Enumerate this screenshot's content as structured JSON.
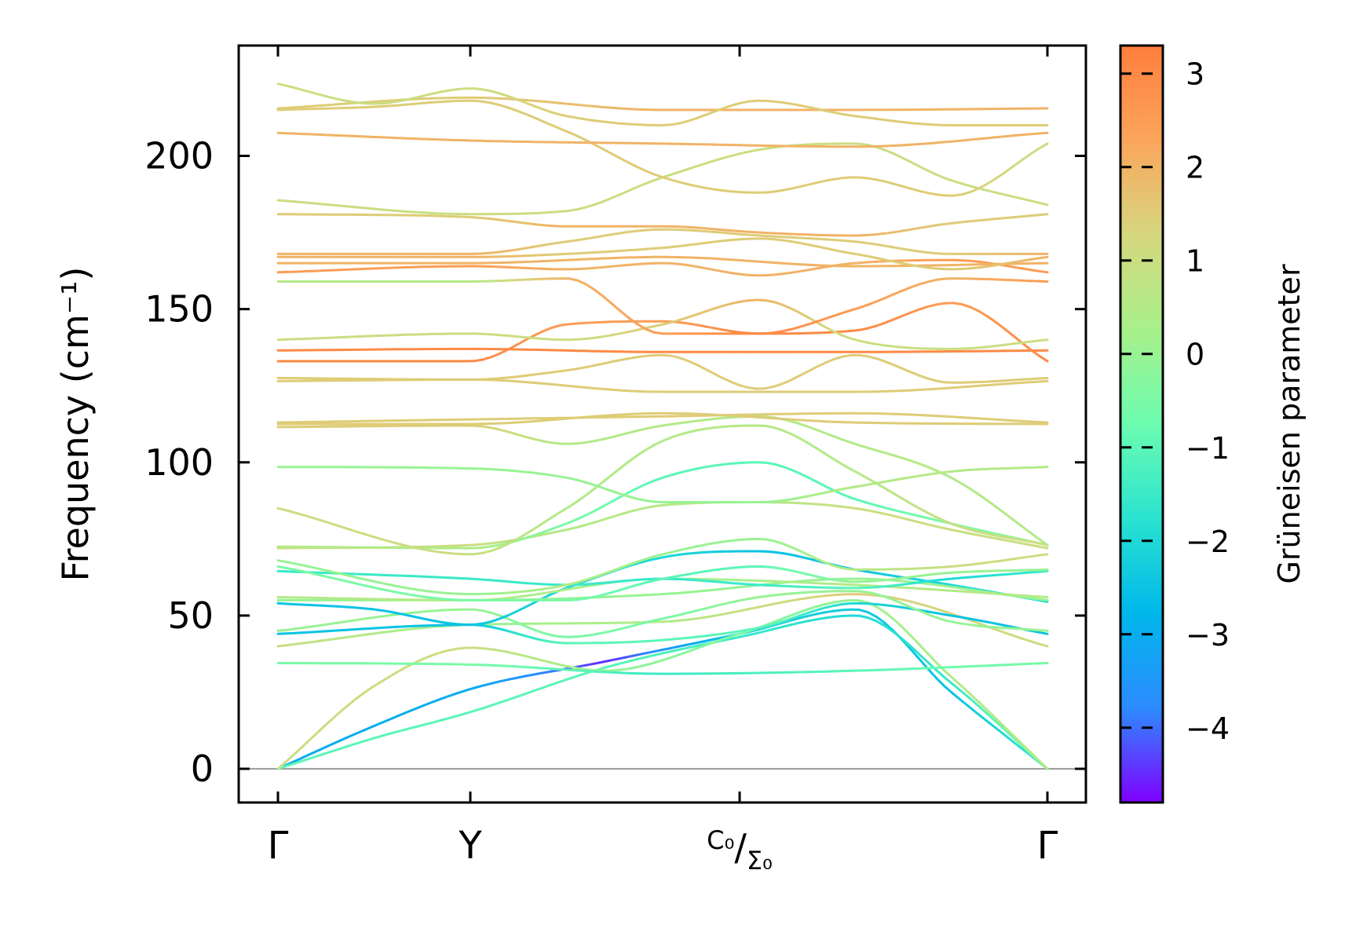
{
  "chart_data": {
    "type": "line",
    "title": "",
    "xlabel": "",
    "ylabel": "Frequency (cm⁻¹)",
    "ylim": [
      -11,
      236
    ],
    "ytick_values": [
      0,
      50,
      100,
      150,
      200
    ],
    "ytick_labels": [
      "0",
      "50",
      "100",
      "150",
      "200"
    ],
    "x_path_length": 4.0,
    "high_symmetry_points": [
      {
        "label": "Γ",
        "x": 0.0
      },
      {
        "label": "Y",
        "x": 1.0
      },
      {
        "label": "C₀/Σ₀",
        "x": 2.4
      },
      {
        "label": "Γ",
        "x": 4.0
      }
    ],
    "zero_line": 0,
    "colorbar": {
      "label": "Grüneisen parameter",
      "range": [
        -4.8,
        3.3
      ],
      "tick_values": [
        3,
        2,
        1,
        0,
        -1,
        -2,
        -3,
        -4
      ],
      "tick_labels": [
        "3",
        "2",
        "1",
        "0",
        "−1",
        "−2",
        "−3",
        "−4"
      ],
      "colormap": "rainbow",
      "stops": [
        "#7f00ff",
        "#2d8bff",
        "#00b7eb",
        "#2ae3d0",
        "#6cfcb0",
        "#a8f08a",
        "#d6d77f",
        "#fba55c",
        "#ff7e3d"
      ]
    },
    "series": [
      {
        "name": "acoustic-1",
        "x": [
          0,
          0.5,
          1.0,
          1.7,
          2.4,
          3.0,
          3.5,
          4.0
        ],
        "y": [
          0,
          14,
          26,
          35,
          44,
          52,
          25,
          0
        ],
        "g": [
          -3,
          -3,
          -3,
          -4.5,
          -2.3,
          -2.3,
          -2.5,
          -1.5
        ]
      },
      {
        "name": "acoustic-2",
        "x": [
          0,
          0.5,
          1.0,
          1.7,
          2.4,
          3.0,
          3.5,
          4.0
        ],
        "y": [
          0,
          10,
          18.5,
          33,
          43,
          50,
          28,
          0
        ],
        "g": [
          -1,
          -1,
          -1,
          -1,
          -1.5,
          -2,
          -1.5,
          -0.5
        ]
      },
      {
        "name": "acoustic-3",
        "x": [
          0,
          0.5,
          1.0,
          1.7,
          2.4,
          3.0,
          3.5,
          4.0
        ],
        "y": [
          0,
          27,
          39.5,
          32,
          44,
          55,
          30,
          0
        ],
        "g": [
          1,
          1,
          1,
          0,
          -0.5,
          0,
          0.5,
          0.5
        ]
      },
      {
        "name": "opt-34",
        "x": [
          0,
          1,
          2,
          3,
          4
        ],
        "y": [
          34.5,
          34,
          31,
          32,
          34.5
        ],
        "g": [
          -0.5,
          -0.5,
          -1.5,
          -1,
          -0.5
        ]
      },
      {
        "name": "opt-40",
        "x": [
          0,
          1,
          2,
          3,
          4
        ],
        "y": [
          40,
          47,
          48,
          57,
          40
        ],
        "g": [
          1,
          0,
          0.5,
          1.5,
          1
        ]
      },
      {
        "name": "opt-44",
        "x": [
          0,
          1,
          1.5,
          2,
          2.5,
          3,
          3.5,
          4
        ],
        "y": [
          44,
          47,
          41,
          42,
          46,
          54,
          50,
          44
        ],
        "g": [
          -2.5,
          -2.5,
          -1,
          -1,
          -1,
          -2,
          -2.5,
          -2.5
        ]
      },
      {
        "name": "opt-45",
        "x": [
          0,
          1,
          1.5,
          2,
          2.5,
          3,
          3.5,
          4
        ],
        "y": [
          45,
          52,
          43,
          49,
          56,
          58,
          48,
          45
        ],
        "g": [
          0,
          0,
          -0.5,
          -0.5,
          0,
          0,
          0,
          0
        ]
      },
      {
        "name": "opt-54",
        "x": [
          0,
          0.5,
          1,
          1.5,
          2,
          2.5,
          3,
          3.5,
          4
        ],
        "y": [
          54,
          52,
          47,
          59,
          69,
          71,
          65,
          60,
          54.5
        ],
        "g": [
          -2.5,
          -2.5,
          -2.5,
          -2,
          -2,
          -2.5,
          -2.5,
          -2,
          -2
        ]
      },
      {
        "name": "opt-55",
        "x": [
          0,
          1,
          2,
          3,
          4
        ],
        "y": [
          55,
          55,
          57,
          62,
          55
        ],
        "g": [
          0,
          0,
          0,
          0,
          0
        ]
      },
      {
        "name": "opt-56",
        "x": [
          0,
          1,
          2,
          3,
          4
        ],
        "y": [
          56,
          55,
          62,
          60,
          56
        ],
        "g": [
          0.5,
          0.5,
          0,
          0.5,
          0.5
        ]
      },
      {
        "name": "opt-64",
        "x": [
          0,
          1,
          1.5,
          2,
          2.5,
          3,
          3.5,
          4
        ],
        "y": [
          64.5,
          62,
          60,
          62,
          60,
          59,
          62,
          64.5
        ],
        "g": [
          -1.5,
          -1.5,
          -1.5,
          -1.5,
          -1.5,
          -1,
          -2,
          -1.5
        ]
      },
      {
        "name": "opt-65",
        "x": [
          0,
          1,
          1.5,
          2,
          2.5,
          3,
          3.5,
          4
        ],
        "y": [
          66,
          55,
          55,
          62,
          66,
          61,
          64,
          65
        ],
        "g": [
          -0.5,
          -0.5,
          -0.5,
          -1,
          -1,
          0,
          0,
          0
        ]
      },
      {
        "name": "opt-68",
        "x": [
          0,
          1,
          1.5,
          2,
          2.5,
          3,
          3.5,
          4
        ],
        "y": [
          68,
          57,
          60,
          70,
          75,
          65,
          66,
          70
        ],
        "g": [
          0,
          0,
          0.5,
          0,
          0,
          0.5,
          1,
          1
        ]
      },
      {
        "name": "opt-72a",
        "x": [
          0,
          1,
          1.5,
          2,
          2.5,
          3,
          3.5,
          4
        ],
        "y": [
          72,
          73,
          78,
          86,
          87,
          85,
          78,
          72
        ],
        "g": [
          1,
          1,
          0.5,
          0.5,
          0.5,
          1,
          1,
          1
        ]
      },
      {
        "name": "opt-72b",
        "x": [
          0,
          1,
          1.5,
          2,
          2.5,
          3,
          3.5,
          4
        ],
        "y": [
          72.5,
          72,
          80,
          95,
          100,
          88,
          80,
          73
        ],
        "g": [
          0.5,
          0.5,
          -0.5,
          -1,
          -1,
          -1,
          -0.5,
          0
        ]
      },
      {
        "name": "opt-85",
        "x": [
          0,
          1,
          1.5,
          2,
          2.5,
          3,
          3.5,
          4
        ],
        "y": [
          85,
          70,
          85,
          107,
          112,
          97,
          80,
          73
        ],
        "g": [
          1,
          1,
          0.5,
          0.5,
          0.5,
          0.5,
          1,
          1
        ]
      },
      {
        "name": "opt-98",
        "x": [
          0,
          1,
          1.5,
          2,
          2.5,
          3,
          3.5,
          4
        ],
        "y": [
          98.5,
          98,
          95,
          87,
          87,
          92,
          97,
          98.5
        ],
        "g": [
          0,
          0,
          0,
          0,
          0,
          0.5,
          0.5,
          0.5
        ]
      },
      {
        "name": "opt-111",
        "x": [
          0,
          1,
          1.5,
          2,
          2.5,
          3,
          3.5,
          4
        ],
        "y": [
          111.5,
          112,
          106,
          112,
          115,
          106,
          95,
          73
        ],
        "g": [
          1.5,
          1.5,
          0.5,
          0.5,
          0.5,
          0.5,
          0.5,
          0.5
        ]
      },
      {
        "name": "opt-112",
        "x": [
          0,
          1,
          2,
          3,
          4
        ],
        "y": [
          112.5,
          112.5,
          116,
          113,
          112.5
        ],
        "g": [
          1.5,
          1.5,
          1.5,
          1.5,
          1.5
        ]
      },
      {
        "name": "opt-113",
        "x": [
          0,
          1,
          2,
          3,
          4
        ],
        "y": [
          113,
          114,
          115,
          116,
          113
        ],
        "g": [
          1.5,
          1.5,
          1.5,
          1.5,
          1.5
        ]
      },
      {
        "name": "opt-126",
        "x": [
          0,
          1,
          2,
          3,
          4
        ],
        "y": [
          126.5,
          127,
          123,
          123,
          126.5
        ],
        "g": [
          1.5,
          1.5,
          1.5,
          1.5,
          1.5
        ]
      },
      {
        "name": "opt-127",
        "x": [
          0,
          1,
          1.5,
          2,
          2.5,
          3,
          3.5,
          4
        ],
        "y": [
          127.5,
          127,
          130,
          135,
          124,
          135,
          126,
          127.5
        ],
        "g": [
          1.5,
          1.5,
          1.5,
          1.5,
          1.5,
          1.5,
          1.5,
          1.5
        ]
      },
      {
        "name": "opt-133",
        "x": [
          0,
          1,
          1.5,
          2,
          2.5,
          3,
          3.5,
          4
        ],
        "y": [
          133,
          133,
          145,
          146,
          142,
          143,
          152,
          133
        ],
        "g": [
          3,
          3,
          2.5,
          2.5,
          3,
          3,
          2.5,
          3
        ]
      },
      {
        "name": "opt-136",
        "x": [
          0,
          1,
          2,
          3,
          4
        ],
        "y": [
          136.5,
          137,
          136,
          136,
          136.5
        ],
        "g": [
          3,
          3,
          3,
          3,
          3
        ]
      },
      {
        "name": "opt-140",
        "x": [
          0,
          1,
          1.5,
          2,
          2.5,
          3,
          3.5,
          4
        ],
        "y": [
          140,
          142,
          140,
          145,
          153,
          140,
          137,
          140
        ],
        "g": [
          1,
          1,
          1,
          1.5,
          2,
          1,
          1,
          1
        ]
      },
      {
        "name": "opt-159",
        "x": [
          0,
          1,
          1.5,
          2,
          2.5,
          3,
          3.5,
          4
        ],
        "y": [
          159,
          159,
          160,
          142,
          142,
          150,
          160,
          159
        ],
        "g": [
          0.5,
          0.5,
          2,
          2.5,
          3,
          2.5,
          2,
          2.5
        ]
      },
      {
        "name": "opt-162",
        "x": [
          0,
          1,
          1.5,
          2,
          2.5,
          3,
          3.5,
          4
        ],
        "y": [
          162,
          164,
          163,
          165,
          161,
          165,
          166,
          162
        ],
        "g": [
          2.5,
          2.5,
          2,
          2,
          2,
          2,
          2.5,
          2.5
        ]
      },
      {
        "name": "opt-165",
        "x": [
          0,
          1,
          2,
          3,
          4
        ],
        "y": [
          165,
          165,
          167,
          164,
          165
        ],
        "g": [
          2,
          2,
          2,
          2,
          2
        ]
      },
      {
        "name": "opt-167",
        "x": [
          0,
          1,
          1.5,
          2,
          2.5,
          3,
          3.5,
          4
        ],
        "y": [
          167,
          167,
          168,
          170,
          173,
          168,
          163,
          167
        ],
        "g": [
          2,
          2,
          1.5,
          1.5,
          1.5,
          1.5,
          1.5,
          2
        ]
      },
      {
        "name": "opt-168",
        "x": [
          0,
          1,
          1.5,
          2,
          2.5,
          3,
          3.5,
          4
        ],
        "y": [
          168,
          168,
          172,
          176,
          174,
          172,
          168,
          168
        ],
        "g": [
          2,
          2,
          1.5,
          1.5,
          1.5,
          1.5,
          1.5,
          2
        ]
      },
      {
        "name": "opt-181",
        "x": [
          0,
          1,
          1.5,
          2,
          2.5,
          3,
          3.5,
          4
        ],
        "y": [
          181,
          180,
          177,
          177,
          175,
          174,
          178,
          181
        ],
        "g": [
          1.5,
          1.5,
          2,
          2,
          2,
          2,
          1.5,
          1.5
        ]
      },
      {
        "name": "opt-185",
        "x": [
          0,
          1,
          1.5,
          2,
          2.5,
          3,
          3.5,
          4
        ],
        "y": [
          185.5,
          181,
          182,
          193,
          202,
          204,
          192,
          184
        ],
        "g": [
          1,
          1,
          1,
          1,
          1,
          1,
          1,
          1
        ]
      },
      {
        "name": "opt-204",
        "x": [
          0,
          0.5,
          1,
          1.5,
          2,
          2.5,
          3,
          3.5,
          4
        ],
        "y": [
          215,
          216,
          218,
          208,
          193,
          188,
          193,
          187,
          204
        ],
        "g": [
          1.5,
          1.5,
          1.5,
          1.5,
          1.5,
          1.5,
          1.5,
          1.5,
          1
        ]
      },
      {
        "name": "opt-207",
        "x": [
          0,
          1,
          2,
          3,
          4
        ],
        "y": [
          207.5,
          205,
          204,
          203,
          207.5
        ],
        "g": [
          2,
          2,
          2,
          2,
          2
        ]
      },
      {
        "name": "opt-215",
        "x": [
          0,
          1,
          2,
          3,
          4
        ],
        "y": [
          215.5,
          219,
          215,
          215,
          215.5
        ],
        "g": [
          1.5,
          1.5,
          2,
          2,
          2
        ]
      },
      {
        "name": "opt-223",
        "x": [
          0,
          0.5,
          1,
          1.5,
          2,
          2.5,
          3,
          3.5,
          4
        ],
        "y": [
          223.5,
          217,
          222,
          213,
          210,
          218,
          213,
          210,
          210
        ],
        "g": [
          1,
          1,
          1,
          1.5,
          1.5,
          1.5,
          1.5,
          1.5,
          1.5
        ]
      }
    ]
  }
}
